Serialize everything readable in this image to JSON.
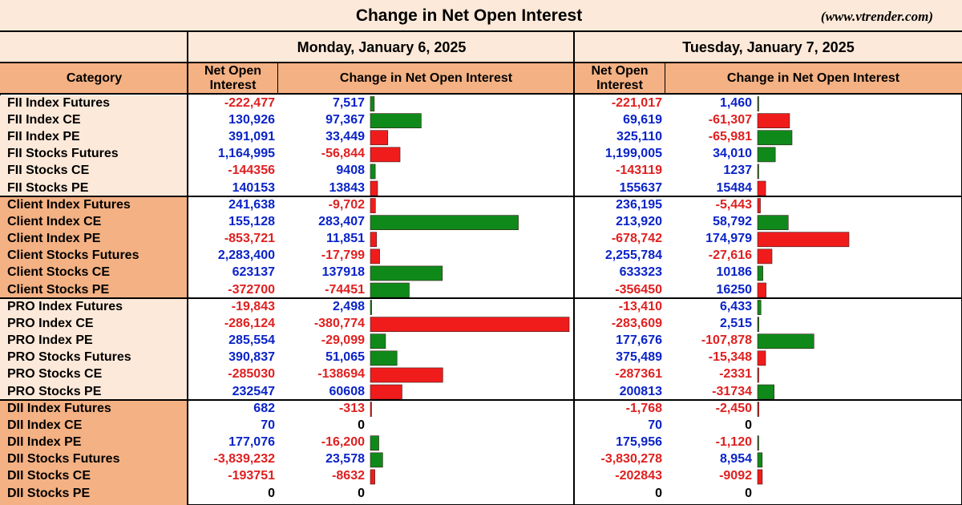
{
  "header": {
    "title": "Change in Net Open Interest",
    "site": "(www.vtrender.com)"
  },
  "columns": {
    "category": "Category",
    "net_oi": "Net Open Interest",
    "change": "Change in Net Open Interest"
  },
  "days": [
    {
      "date": "Monday, January 6, 2025"
    },
    {
      "date": "Tuesday, January 7, 2025"
    }
  ],
  "colors": {
    "positive_text": "#0a23c8",
    "negative_text": "#e02020",
    "bar_positive": "#0f8a1a",
    "bar_negative": "#f01c1c",
    "header_fill": "#fde9d9",
    "category_fill": "#f4b183"
  },
  "chart_data": {
    "type": "bar",
    "title": "Change in Net Open Interest",
    "groups": [
      "FII",
      "Client",
      "PRO",
      "DII"
    ],
    "categories": [
      "FII Index Futures",
      "FII Index CE",
      "FII Index PE",
      "FII Stocks Futures",
      "FII Stocks CE",
      "FII Stocks PE",
      "Client Index Futures",
      "Client Index CE",
      "Client Index PE",
      "Client Stocks Futures",
      "Client Stocks CE",
      "Client Stocks PE",
      "PRO Index Futures",
      "PRO Index CE",
      "PRO Index PE",
      "PRO Stocks Futures",
      "PRO Stocks CE",
      "PRO Stocks PE",
      "DII Index Futures",
      "DII Index CE",
      "DII Index PE",
      "DII Stocks Futures",
      "DII Stocks CE",
      "DII Stocks PE"
    ],
    "series": [
      {
        "name": "Monday, January 6, 2025",
        "net_oi_text": [
          "-222,477",
          "130,926",
          "391,091",
          "1,164,995",
          "-144356",
          "140153",
          "241,638",
          "155,128",
          "-853,721",
          "2,283,400",
          "623137",
          "-372700",
          "-19,843",
          "-286,124",
          "285,554",
          "390,837",
          "-285030",
          "232547",
          "682",
          "70",
          "177,076",
          "-3,839,232",
          "-193751",
          "0"
        ],
        "change_text": [
          "7,517",
          "97,367",
          "33,449",
          "-56,844",
          "9408",
          "13843",
          "-9,702",
          "283,407",
          "11,851",
          "-17,799",
          "137918",
          "-74451",
          "2,498",
          "-380,774",
          "-29,099",
          "51,065",
          "-138694",
          "60608",
          "-313",
          "0",
          "-16,200",
          "23,578",
          "-8632",
          "0"
        ],
        "bar_values": [
          7517,
          97367,
          -33449,
          -56844,
          9408,
          -13843,
          -9702,
          283407,
          -11851,
          -17799,
          137918,
          74451,
          2498,
          -380774,
          29099,
          51065,
          -138694,
          -60608,
          -313,
          0,
          16200,
          23578,
          -8632,
          0
        ]
      },
      {
        "name": "Tuesday, January 7, 2025",
        "net_oi_text": [
          "-221,017",
          "69,619",
          "325,110",
          "1,199,005",
          "-143119",
          "155637",
          "236,195",
          "213,920",
          "-678,742",
          "2,255,784",
          "633323",
          "-356450",
          "-13,410",
          "-283,609",
          "177,676",
          "375,489",
          "-287361",
          "200813",
          "-1,768",
          "70",
          "175,956",
          "-3,830,278",
          "-202843",
          "0"
        ],
        "change_text": [
          "1,460",
          "-61,307",
          "-65,981",
          "34,010",
          "1237",
          "15484",
          "-5,443",
          "58,792",
          "174,979",
          "-27,616",
          "10186",
          "16250",
          "6,433",
          "2,515",
          "-107,878",
          "-15,348",
          "-2331",
          "-31734",
          "-2,450",
          "0",
          "-1,120",
          "8,954",
          "-9092",
          "0"
        ],
        "bar_values": [
          1460,
          -61307,
          65981,
          34010,
          1237,
          -15484,
          -5443,
          58792,
          -174979,
          -27616,
          10186,
          -16250,
          6433,
          2515,
          107878,
          -15348,
          -2331,
          31734,
          -2450,
          0,
          1120,
          8954,
          -9092,
          0
        ]
      }
    ]
  }
}
